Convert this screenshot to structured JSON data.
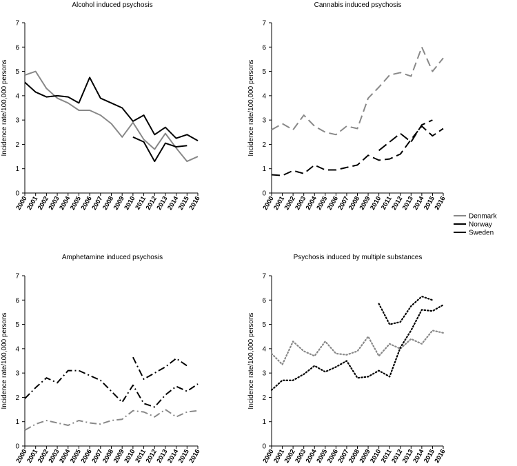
{
  "figure": {
    "years": [
      "2000",
      "2001",
      "2002",
      "2003",
      "2004",
      "2005",
      "2006",
      "2007",
      "2008",
      "2009",
      "2010",
      "2011",
      "2012",
      "2013",
      "2014",
      "2015",
      "2016"
    ],
    "ylabel": "Incidence rate/100,000 persons",
    "legend": [
      {
        "name": "Denmark",
        "color": "#888888"
      },
      {
        "name": "Norway",
        "color": "#000000"
      },
      {
        "name": "Sweden",
        "color": "#000000"
      }
    ]
  },
  "chart_data": [
    {
      "type": "line",
      "title": "Alcohol induced psychosis",
      "ylabel": "Incidence rate/100,000 persons",
      "ylim": [
        0,
        7
      ],
      "yticks": [
        0,
        1,
        2,
        3,
        4,
        5,
        6,
        7
      ],
      "x": [
        "2000",
        "2001",
        "2002",
        "2003",
        "2004",
        "2005",
        "2006",
        "2007",
        "2008",
        "2009",
        "2010",
        "2011",
        "2012",
        "2013",
        "2014",
        "2015",
        "2016"
      ],
      "line_style": "solid",
      "series": [
        {
          "name": "Denmark",
          "color": "#888888",
          "values": [
            4.85,
            5.0,
            4.3,
            3.9,
            3.7,
            3.4,
            3.4,
            3.2,
            2.85,
            2.3,
            2.9,
            2.2,
            1.8,
            2.45,
            1.85,
            1.3,
            1.5
          ]
        },
        {
          "name": "Norway",
          "color": "#000000",
          "values": [
            null,
            null,
            null,
            null,
            null,
            null,
            null,
            null,
            null,
            null,
            2.3,
            2.1,
            1.3,
            2.05,
            1.9,
            1.95,
            null
          ]
        },
        {
          "name": "Sweden",
          "color": "#000000",
          "values": [
            4.55,
            4.15,
            3.95,
            4.0,
            3.95,
            3.7,
            4.75,
            3.9,
            3.7,
            3.5,
            2.95,
            3.2,
            2.4,
            2.7,
            2.25,
            2.4,
            2.15
          ]
        }
      ]
    },
    {
      "type": "line",
      "title": "Cannabis induced psychosis",
      "ylabel": "Incidence rate/100,000 persons",
      "ylim": [
        0,
        7
      ],
      "yticks": [
        0,
        1,
        2,
        3,
        4,
        5,
        6,
        7
      ],
      "x": [
        "2000",
        "2001",
        "2002",
        "2003",
        "2004",
        "2005",
        "2006",
        "2007",
        "2008",
        "2009",
        "2010",
        "2011",
        "2012",
        "2013",
        "2014",
        "2015",
        "2016"
      ],
      "line_style": "dashed",
      "series": [
        {
          "name": "Denmark",
          "color": "#888888",
          "values": [
            2.6,
            2.85,
            2.6,
            3.2,
            2.75,
            2.5,
            2.4,
            2.75,
            2.65,
            3.9,
            4.35,
            4.85,
            4.95,
            4.8,
            6.0,
            5.0,
            5.55
          ]
        },
        {
          "name": "Norway",
          "color": "#000000",
          "values": [
            null,
            null,
            null,
            null,
            null,
            null,
            null,
            null,
            null,
            null,
            1.75,
            2.1,
            2.45,
            2.1,
            2.8,
            3.0,
            null
          ]
        },
        {
          "name": "Sweden",
          "color": "#000000",
          "values": [
            0.75,
            0.72,
            0.92,
            0.8,
            1.15,
            0.95,
            0.95,
            1.05,
            1.15,
            1.55,
            1.35,
            1.4,
            1.6,
            2.2,
            2.75,
            2.35,
            2.65
          ]
        }
      ]
    },
    {
      "type": "line",
      "title": "Amphetamine induced psychosis",
      "ylabel": "Incidence rate/100,000 persons",
      "ylim": [
        0,
        7
      ],
      "yticks": [
        0,
        1,
        2,
        3,
        4,
        5,
        6,
        7
      ],
      "x": [
        "2000",
        "2001",
        "2002",
        "2003",
        "2004",
        "2005",
        "2006",
        "2007",
        "2008",
        "2009",
        "2010",
        "2011",
        "2012",
        "2013",
        "2014",
        "2015",
        "2016"
      ],
      "line_style": "dashdot",
      "series": [
        {
          "name": "Denmark",
          "color": "#888888",
          "values": [
            0.65,
            0.9,
            1.05,
            0.95,
            0.85,
            1.05,
            0.95,
            0.9,
            1.05,
            1.1,
            1.45,
            1.4,
            1.2,
            1.5,
            1.2,
            1.4,
            1.45
          ]
        },
        {
          "name": "Norway",
          "color": "#000000",
          "values": [
            null,
            null,
            null,
            null,
            null,
            null,
            null,
            null,
            null,
            null,
            3.65,
            2.75,
            3.0,
            3.25,
            3.6,
            3.3,
            null
          ]
        },
        {
          "name": "Sweden",
          "color": "#000000",
          "values": [
            1.95,
            2.4,
            2.8,
            2.6,
            3.1,
            3.1,
            2.9,
            2.7,
            2.25,
            1.8,
            2.5,
            1.75,
            1.6,
            2.1,
            2.45,
            2.25,
            2.55
          ]
        }
      ]
    },
    {
      "type": "line",
      "title": "Psychosis induced by multiple substances",
      "ylabel": "Incidence rate/100,000 persons",
      "ylim": [
        0,
        7
      ],
      "yticks": [
        0,
        1,
        2,
        3,
        4,
        5,
        6,
        7
      ],
      "x": [
        "2000",
        "2001",
        "2002",
        "2003",
        "2004",
        "2005",
        "2006",
        "2007",
        "2008",
        "2009",
        "2010",
        "2011",
        "2012",
        "2013",
        "2014",
        "2015",
        "2016"
      ],
      "line_style": "dotted",
      "series": [
        {
          "name": "Denmark",
          "color": "#888888",
          "values": [
            3.8,
            3.35,
            4.3,
            3.9,
            3.7,
            4.3,
            3.8,
            3.75,
            3.9,
            4.5,
            3.7,
            4.2,
            4.0,
            4.4,
            4.2,
            4.75,
            4.65
          ]
        },
        {
          "name": "Norway",
          "color": "#000000",
          "values": [
            null,
            null,
            null,
            null,
            null,
            null,
            null,
            null,
            null,
            null,
            5.85,
            5.0,
            5.1,
            5.75,
            6.15,
            6.0,
            null
          ]
        },
        {
          "name": "Sweden",
          "color": "#000000",
          "values": [
            2.3,
            2.7,
            2.7,
            2.95,
            3.3,
            3.05,
            3.25,
            3.5,
            2.8,
            2.85,
            3.1,
            2.85,
            4.05,
            4.75,
            5.6,
            5.55,
            5.8
          ]
        }
      ]
    }
  ]
}
